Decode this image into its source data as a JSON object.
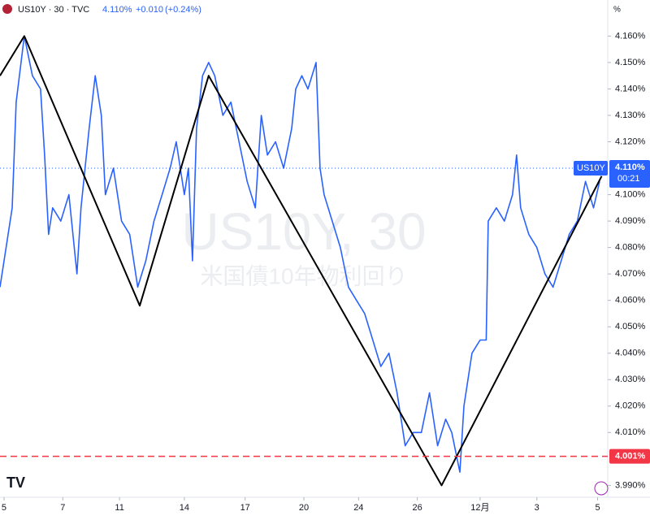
{
  "chart_data": {
    "type": "line",
    "header": {
      "symbol": "US10Y · 30 · TVC",
      "price": "4.110%",
      "change": "+0.010",
      "change_pct": "(+0.24%)"
    },
    "watermark": "US10Y, 30",
    "watermark_sub": "米国債10年物利回り",
    "unit": "%",
    "x": [
      0,
      4,
      6,
      8,
      12,
      16,
      20,
      22,
      24,
      26,
      30,
      34,
      38,
      40,
      44,
      47,
      50,
      52,
      56,
      60,
      64,
      68,
      72,
      76,
      80,
      84,
      87,
      91,
      93,
      95,
      97,
      100,
      103,
      106,
      110,
      114,
      118,
      122,
      126,
      129,
      132,
      136,
      140,
      144,
      146,
      149,
      152,
      156,
      158,
      160,
      164,
      168,
      172,
      176,
      180,
      184,
      188,
      192,
      196,
      200,
      204,
      208,
      212,
      216,
      220,
      223,
      227,
      229,
      233,
      237,
      240,
      241,
      245,
      249,
      253,
      255,
      257,
      261,
      265,
      269,
      273,
      277,
      281,
      285,
      289,
      293,
      296
    ],
    "series": [
      {
        "name": "US10Y",
        "color": "#2962ff",
        "values": [
          4.065,
          4.085,
          4.095,
          4.135,
          4.16,
          4.145,
          4.14,
          4.115,
          4.085,
          4.095,
          4.09,
          4.1,
          4.07,
          4.095,
          4.125,
          4.145,
          4.13,
          4.1,
          4.11,
          4.09,
          4.085,
          4.065,
          4.075,
          4.09,
          4.1,
          4.11,
          4.12,
          4.1,
          4.11,
          4.075,
          4.125,
          4.145,
          4.15,
          4.145,
          4.13,
          4.135,
          4.12,
          4.105,
          4.095,
          4.13,
          4.115,
          4.12,
          4.11,
          4.125,
          4.14,
          4.145,
          4.14,
          4.15,
          4.11,
          4.1,
          4.09,
          4.08,
          4.065,
          4.06,
          4.055,
          4.045,
          4.035,
          4.04,
          4.025,
          4.005,
          4.01,
          4.01,
          4.025,
          4.005,
          4.015,
          4.01,
          3.995,
          4.02,
          4.04,
          4.045,
          4.045,
          4.09,
          4.095,
          4.09,
          4.1,
          4.115,
          4.095,
          4.085,
          4.08,
          4.07,
          4.065,
          4.075,
          4.085,
          4.09,
          4.105,
          4.095,
          4.105
        ]
      }
    ],
    "zigzag": {
      "color": "#000000",
      "x": [
        0,
        12,
        69,
        103,
        218,
        297
      ],
      "values": [
        4.145,
        4.16,
        4.058,
        4.145,
        3.99,
        4.107
      ]
    },
    "last_price": {
      "value": 4.11,
      "label": "4.110%",
      "tag": "US10Y",
      "countdown": "00:21"
    },
    "alert_line": {
      "value": 4.001,
      "label": "4.001%",
      "color": "#f23645"
    },
    "xlim": [
      0,
      300
    ],
    "ylim": [
      3.9855,
      4.1675
    ],
    "xticks": [
      {
        "value": 2,
        "label": "5"
      },
      {
        "value": 31,
        "label": "7"
      },
      {
        "value": 59,
        "label": "11"
      },
      {
        "value": 91,
        "label": "14"
      },
      {
        "value": 121,
        "label": "17"
      },
      {
        "value": 150,
        "label": "20"
      },
      {
        "value": 177,
        "label": "24"
      },
      {
        "value": 206,
        "label": "26"
      },
      {
        "value": 237,
        "label": "12月"
      },
      {
        "value": 265,
        "label": "3"
      },
      {
        "value": 295,
        "label": "5"
      }
    ],
    "yticks": [
      {
        "value": 3.99,
        "label": "3.990%"
      },
      {
        "value": 4.01,
        "label": "4.010%"
      },
      {
        "value": 4.02,
        "label": "4.020%"
      },
      {
        "value": 4.03,
        "label": "4.030%"
      },
      {
        "value": 4.04,
        "label": "4.040%"
      },
      {
        "value": 4.05,
        "label": "4.050%"
      },
      {
        "value": 4.06,
        "label": "4.060%"
      },
      {
        "value": 4.07,
        "label": "4.070%"
      },
      {
        "value": 4.08,
        "label": "4.080%"
      },
      {
        "value": 4.09,
        "label": "4.090%"
      },
      {
        "value": 4.1,
        "label": "4.100%"
      },
      {
        "value": 4.12,
        "label": "4.120%"
      },
      {
        "value": 4.13,
        "label": "4.130%"
      },
      {
        "value": 4.14,
        "label": "4.140%"
      },
      {
        "value": 4.15,
        "label": "4.150%"
      },
      {
        "value": 4.16,
        "label": "4.160%"
      }
    ]
  }
}
